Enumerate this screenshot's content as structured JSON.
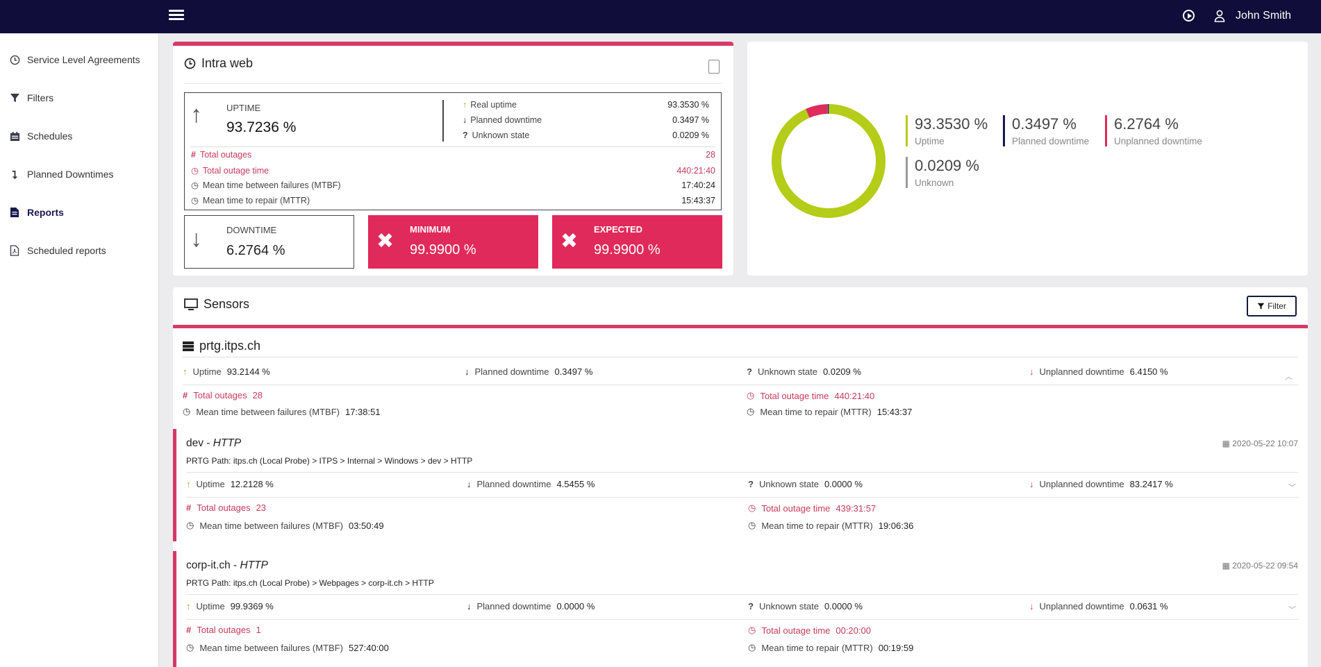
{
  "user": {
    "name": "John Smith"
  },
  "sidebar": {
    "items": [
      {
        "label": "Service Level Agreements",
        "icon": "clock-icon"
      },
      {
        "label": "Filters",
        "icon": "funnel-icon"
      },
      {
        "label": "Schedules",
        "icon": "calendar-icon"
      },
      {
        "label": "Planned Downtimes",
        "icon": "down-arrow-icon"
      },
      {
        "label": "Reports",
        "icon": "report-icon"
      },
      {
        "label": "Scheduled reports",
        "icon": "pdf-file-icon"
      }
    ]
  },
  "sla": {
    "title": "Intra web",
    "uptime_label": "UPTIME",
    "uptime_value": "93.7236 %",
    "real_uptime_label": "Real uptime",
    "real_uptime": "93.3530 %",
    "planned_downtime_label": "Planned downtime",
    "planned_downtime": "0.3497 %",
    "unknown_label": "Unknown state",
    "unknown": "0.0209 %",
    "total_outages_label": "Total outages",
    "total_outages": "28",
    "total_outage_time_label": "Total outage time",
    "total_outage_time": "440:21:40",
    "mtbf_label": "Mean time between failures (MTBF)",
    "mtbf": "17:40:24",
    "mttr_label": "Mean time to repair (MTTR)",
    "mttr": "15:43:37",
    "downtime_label": "DOWNTIME",
    "downtime_value": "6.2764 %",
    "minimum_label": "MINIMUM",
    "minimum_value": "99.9900 %",
    "expected_label": "EXPECTED",
    "expected_value": "99.9900 %"
  },
  "donut": {
    "segments": [
      {
        "name": "Uptime",
        "value": 93.353,
        "display": "93.3530 %",
        "color": "#b5cc18"
      },
      {
        "name": "Planned downtime",
        "value": 0.3497,
        "display": "0.3497 %",
        "color": "#1a1850"
      },
      {
        "name": "Unplanned downtime",
        "value": 6.2764,
        "display": "6.2764 %",
        "color": "#e02a5b"
      },
      {
        "name": "Unknown",
        "value": 0.0209,
        "display": "0.0209 %",
        "color": "#999999"
      }
    ]
  },
  "sensors": {
    "title": "Sensors",
    "filter_label": "Filter",
    "host": {
      "name": "prtg.itps.ch",
      "uptime_label": "Uptime",
      "uptime": "93.2144 %",
      "planned_label": "Planned downtime",
      "planned": "0.3497 %",
      "unknown_label": "Unknown state",
      "unknown": "0.0209 %",
      "unplanned_label": "Unplanned downtime",
      "unplanned": "6.4150 %",
      "outages_label": "Total outages",
      "outages": "28",
      "outage_time_label": "Total outage time",
      "outage_time": "440:21:40",
      "mtbf_label": "Mean time between failures (MTBF)",
      "mtbf": "17:38:51",
      "mttr_label": "Mean time to repair (MTTR)",
      "mttr": "15:43:37"
    },
    "items": [
      {
        "name": "dev - ",
        "type": "HTTP",
        "date": "2020-05-22 10:07",
        "path_label": "PRTG Path:",
        "path": "itps.ch (Local Probe) > ITPS > Internal > Windows > dev > HTTP",
        "uptime_label": "Uptime",
        "uptime": "12.2128 %",
        "planned_label": "Planned downtime",
        "planned": "4.5455 %",
        "unknown_label": "Unknown state",
        "unknown": "0.0000 %",
        "unplanned_label": "Unplanned downtime",
        "unplanned": "83.2417 %",
        "outages_label": "Total outages",
        "outages": "23",
        "outage_time_label": "Total outage time",
        "outage_time": "439:31:57",
        "mtbf_label": "Mean time between failures (MTBF)",
        "mtbf": "03:50:49",
        "mttr_label": "Mean time to repair (MTTR)",
        "mttr": "19:06:36"
      },
      {
        "name": "corp-it.ch - ",
        "type": "HTTP",
        "date": "2020-05-22 09:54",
        "path_label": "PRTG Path:",
        "path": "itps.ch (Local Probe) > Webpages > corp-it.ch > HTTP",
        "uptime_label": "Uptime",
        "uptime": "99.9369 %",
        "planned_label": "Planned downtime",
        "planned": "0.0000 %",
        "unknown_label": "Unknown state",
        "unknown": "0.0000 %",
        "unplanned_label": "Unplanned downtime",
        "unplanned": "0.0631 %",
        "outages_label": "Total outages",
        "outages": "1",
        "outage_time_label": "Total outage time",
        "outage_time": "00:20:00",
        "mtbf_label": "Mean time between failures (MTBF)",
        "mtbf": "527:40:00",
        "mttr_label": "Mean time to repair (MTTR)",
        "mttr": "00:19:59"
      }
    ]
  }
}
